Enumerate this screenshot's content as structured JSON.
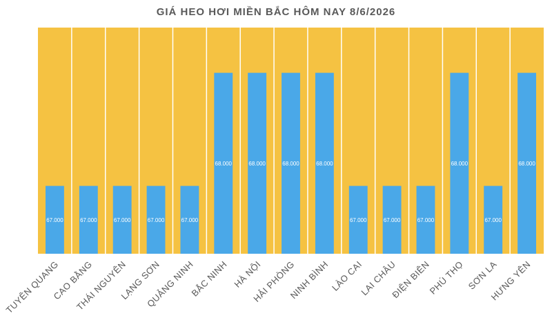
{
  "chart_data": {
    "type": "bar",
    "title": "GIÁ HEO HƠI MIỀN BẮC HÔM NAY 8/6/2026",
    "categories": [
      "TUYÊN QUANG",
      "CAO BẰNG",
      "THÁI NGUYÊN",
      "LẠNG SƠN",
      "QUẢNG NINH",
      "BẮC NINH",
      "HÀ NỘI",
      "HẢI PHÒNG",
      "NINH BÌNH",
      "LÀO CAI",
      "LAI CHÂU",
      "ĐIỆN BIÊN",
      "PHÚ THỌ",
      "SƠN LA",
      "HƯNG YÊN"
    ],
    "values": [
      67000,
      67000,
      67000,
      67000,
      67000,
      68000,
      68000,
      68000,
      68000,
      67000,
      67000,
      67000,
      68000,
      67000,
      68000
    ],
    "data_labels": [
      "67.000",
      "67.000",
      "67.000",
      "67.000",
      "67.000",
      "68.000",
      "68.000",
      "68.000",
      "68.000",
      "67.000",
      "67.000",
      "67.000",
      "68.000",
      "67.000",
      "68.000"
    ],
    "ylim": [
      66400,
      68400
    ],
    "grid": false,
    "legend": "none",
    "colors": {
      "plot_background": "#f5c242",
      "bar": "#4aa8e8",
      "label": "#ffffff",
      "text": "#595959"
    }
  }
}
